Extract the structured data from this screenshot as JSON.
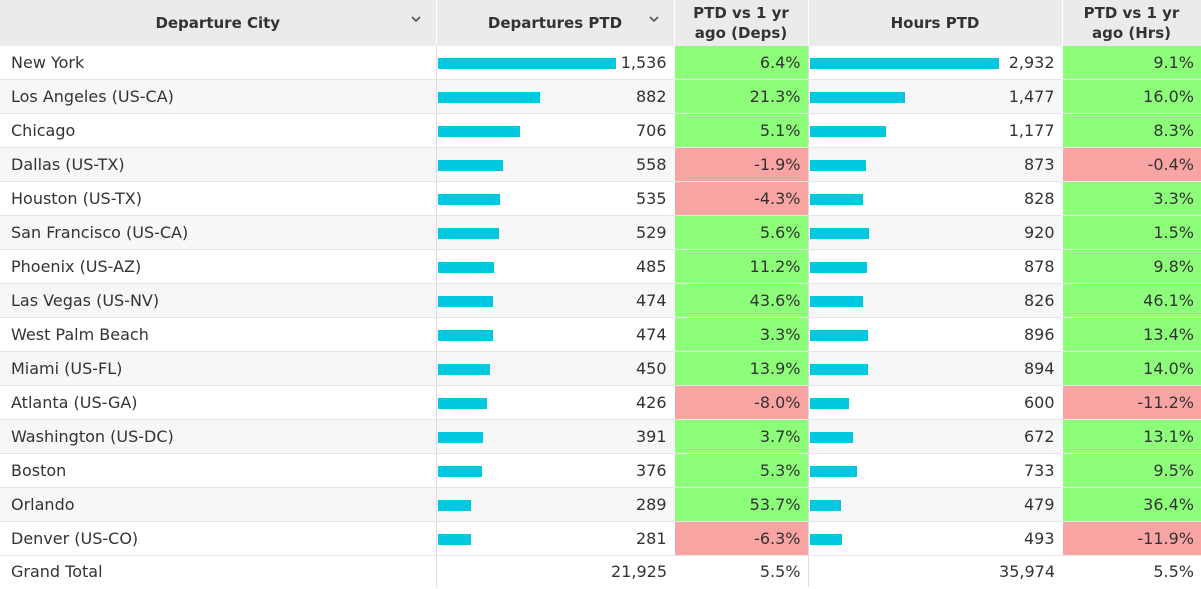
{
  "colors": {
    "bar": "#00c8e1",
    "positive": "#8cfe7a",
    "negative": "#f8a4a3",
    "header_bg": "#ebebeb"
  },
  "headers": {
    "city": "Departure City",
    "departures": "Departures PTD",
    "deps_change": "PTD vs 1 yr ago (Deps)",
    "hours": "Hours PTD",
    "hours_change": "PTD vs 1 yr ago (Hrs)"
  },
  "icons": {
    "sort": "chevron-down-icon"
  },
  "chart_data": {
    "type": "table",
    "columns": [
      "Departure City",
      "Departures PTD",
      "PTD vs 1 yr ago (Deps)",
      "Hours PTD",
      "PTD vs 1 yr ago (Hrs)"
    ],
    "bar_scale": {
      "departures_max": 1536,
      "hours_max": 2932
    },
    "rows": [
      {
        "city": "New York",
        "departures": 1536,
        "departures_label": "1,536",
        "deps_change": 6.4,
        "deps_change_label": "6.4%",
        "hours": 2932,
        "hours_label": "2,932",
        "hours_change": 9.1,
        "hours_change_label": "9.1%"
      },
      {
        "city": "Los Angeles (US-CA)",
        "departures": 882,
        "departures_label": "882",
        "deps_change": 21.3,
        "deps_change_label": "21.3%",
        "hours": 1477,
        "hours_label": "1,477",
        "hours_change": 16.0,
        "hours_change_label": "16.0%"
      },
      {
        "city": "Chicago",
        "departures": 706,
        "departures_label": "706",
        "deps_change": 5.1,
        "deps_change_label": "5.1%",
        "hours": 1177,
        "hours_label": "1,177",
        "hours_change": 8.3,
        "hours_change_label": "8.3%"
      },
      {
        "city": "Dallas (US-TX)",
        "departures": 558,
        "departures_label": "558",
        "deps_change": -1.9,
        "deps_change_label": "-1.9%",
        "hours": 873,
        "hours_label": "873",
        "hours_change": -0.4,
        "hours_change_label": "-0.4%"
      },
      {
        "city": "Houston (US-TX)",
        "departures": 535,
        "departures_label": "535",
        "deps_change": -4.3,
        "deps_change_label": "-4.3%",
        "hours": 828,
        "hours_label": "828",
        "hours_change": 3.3,
        "hours_change_label": "3.3%"
      },
      {
        "city": "San Francisco (US-CA)",
        "departures": 529,
        "departures_label": "529",
        "deps_change": 5.6,
        "deps_change_label": "5.6%",
        "hours": 920,
        "hours_label": "920",
        "hours_change": 1.5,
        "hours_change_label": "1.5%"
      },
      {
        "city": "Phoenix (US-AZ)",
        "departures": 485,
        "departures_label": "485",
        "deps_change": 11.2,
        "deps_change_label": "11.2%",
        "hours": 878,
        "hours_label": "878",
        "hours_change": 9.8,
        "hours_change_label": "9.8%"
      },
      {
        "city": "Las Vegas (US-NV)",
        "departures": 474,
        "departures_label": "474",
        "deps_change": 43.6,
        "deps_change_label": "43.6%",
        "hours": 826,
        "hours_label": "826",
        "hours_change": 46.1,
        "hours_change_label": "46.1%"
      },
      {
        "city": "West Palm Beach",
        "departures": 474,
        "departures_label": "474",
        "deps_change": 3.3,
        "deps_change_label": "3.3%",
        "hours": 896,
        "hours_label": "896",
        "hours_change": 13.4,
        "hours_change_label": "13.4%"
      },
      {
        "city": "Miami (US-FL)",
        "departures": 450,
        "departures_label": "450",
        "deps_change": 13.9,
        "deps_change_label": "13.9%",
        "hours": 894,
        "hours_label": "894",
        "hours_change": 14.0,
        "hours_change_label": "14.0%"
      },
      {
        "city": "Atlanta (US-GA)",
        "departures": 426,
        "departures_label": "426",
        "deps_change": -8.0,
        "deps_change_label": "-8.0%",
        "hours": 600,
        "hours_label": "600",
        "hours_change": -11.2,
        "hours_change_label": "-11.2%"
      },
      {
        "city": "Washington (US-DC)",
        "departures": 391,
        "departures_label": "391",
        "deps_change": 3.7,
        "deps_change_label": "3.7%",
        "hours": 672,
        "hours_label": "672",
        "hours_change": 13.1,
        "hours_change_label": "13.1%"
      },
      {
        "city": "Boston",
        "departures": 376,
        "departures_label": "376",
        "deps_change": 5.3,
        "deps_change_label": "5.3%",
        "hours": 733,
        "hours_label": "733",
        "hours_change": 9.5,
        "hours_change_label": "9.5%"
      },
      {
        "city": "Orlando",
        "departures": 289,
        "departures_label": "289",
        "deps_change": 53.7,
        "deps_change_label": "53.7%",
        "hours": 479,
        "hours_label": "479",
        "hours_change": 36.4,
        "hours_change_label": "36.4%"
      },
      {
        "city": "Denver (US-CO)",
        "departures": 281,
        "departures_label": "281",
        "deps_change": -6.3,
        "deps_change_label": "-6.3%",
        "hours": 493,
        "hours_label": "493",
        "hours_change": -11.9,
        "hours_change_label": "-11.9%"
      }
    ],
    "total": {
      "city": "Grand Total",
      "departures_label": "21,925",
      "deps_change_label": "5.5%",
      "hours_label": "35,974",
      "hours_change_label": "5.5%"
    }
  }
}
